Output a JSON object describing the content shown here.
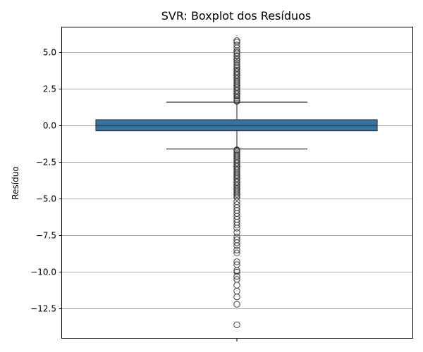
{
  "chart_data": {
    "type": "boxplot",
    "title": "SVR: Boxplot dos Resíduos",
    "xlabel": "",
    "ylabel": "Resíduo",
    "ylim": [
      -14.5,
      6.7
    ],
    "yticks": [
      5.0,
      2.5,
      0.0,
      -2.5,
      -5.0,
      -7.5,
      -10.0,
      -12.5
    ],
    "ytick_labels": [
      "5.0",
      "2.5",
      "0.0",
      "−2.5",
      "−5.0",
      "−7.5",
      "−10.0",
      "−12.5"
    ],
    "grid": true,
    "box": {
      "q1": -0.35,
      "median": 0.0,
      "q3": 0.4,
      "whisker_low": -1.6,
      "whisker_high": 1.6,
      "color": "#3274a1"
    },
    "outliers": [
      5.8,
      5.7,
      5.5,
      5.3,
      5.1,
      5.0,
      4.9,
      4.75,
      4.6,
      4.5,
      4.4,
      4.3,
      4.15,
      4.0,
      3.9,
      3.8,
      3.7,
      3.6,
      3.5,
      3.4,
      3.3,
      3.2,
      3.1,
      3.0,
      2.9,
      2.8,
      2.7,
      2.6,
      2.5,
      2.4,
      2.3,
      2.2,
      2.1,
      2.0,
      1.9,
      1.8,
      1.7,
      1.65,
      -1.65,
      -1.7,
      -1.8,
      -1.9,
      -2.0,
      -2.1,
      -2.2,
      -2.3,
      -2.4,
      -2.5,
      -2.6,
      -2.7,
      -2.8,
      -2.9,
      -3.0,
      -3.1,
      -3.2,
      -3.3,
      -3.4,
      -3.5,
      -3.6,
      -3.7,
      -3.8,
      -3.9,
      -4.0,
      -4.1,
      -4.2,
      -4.3,
      -4.4,
      -4.5,
      -4.6,
      -4.7,
      -4.8,
      -4.9,
      -5.2,
      -5.4,
      -5.6,
      -5.8,
      -6.0,
      -6.2,
      -6.4,
      -6.6,
      -6.8,
      -7.0,
      -7.3,
      -7.6,
      -7.8,
      -8.0,
      -8.2,
      -8.5,
      -8.7,
      -9.3,
      -9.5,
      -9.9,
      -10.0,
      -10.3,
      -10.5,
      -10.9,
      -11.3,
      -11.7,
      -12.2,
      -13.6
    ]
  }
}
